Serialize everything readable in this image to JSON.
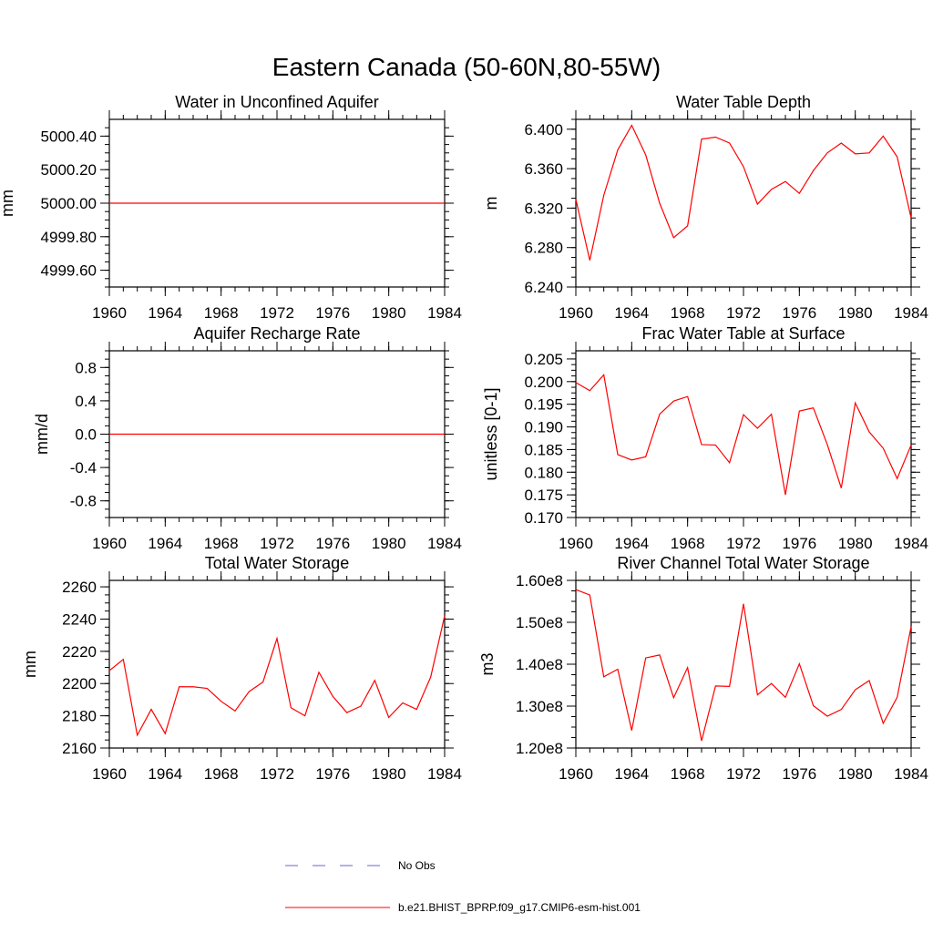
{
  "figure": {
    "title": "Eastern Canada (50-60N,80-55W)"
  },
  "legend": {
    "entries": [
      {
        "label": "No Obs",
        "style": "dashed",
        "color": "#6666cc"
      },
      {
        "label": "b.e21.BHIST_BPRP.f09_g17.CMIP6-esm-hist.001",
        "style": "solid",
        "color": "#ff0000"
      }
    ]
  },
  "colors": {
    "series": "#ff0000",
    "axis": "#000000"
  },
  "chart_data": [
    {
      "type": "line",
      "title": "Water in Unconfined Aquifer",
      "xlabel": "",
      "ylabel": "mm",
      "xlim": [
        1960,
        1984
      ],
      "ylim": [
        4999.5,
        5000.5
      ],
      "xticks": [
        1960,
        1964,
        1968,
        1972,
        1976,
        1980,
        1984
      ],
      "xtick_labels": [
        "1960",
        "1964",
        "1968",
        "1972",
        "1976",
        "1980",
        "1984"
      ],
      "yticks": [
        4999.6,
        4999.8,
        5000.0,
        5000.2,
        5000.4
      ],
      "ytick_labels": [
        "4999.60",
        "4999.80",
        "5000.00",
        "5000.20",
        "5000.40"
      ],
      "x": [
        1960,
        1961,
        1962,
        1963,
        1964,
        1965,
        1966,
        1967,
        1968,
        1969,
        1970,
        1971,
        1972,
        1973,
        1974,
        1975,
        1976,
        1977,
        1978,
        1979,
        1980,
        1981,
        1982,
        1983,
        1984
      ],
      "series": [
        {
          "color": "#ff0000",
          "values": [
            5000,
            5000,
            5000,
            5000,
            5000,
            5000,
            5000,
            5000,
            5000,
            5000,
            5000,
            5000,
            5000,
            5000,
            5000,
            5000,
            5000,
            5000,
            5000,
            5000,
            5000,
            5000,
            5000,
            5000,
            5000
          ]
        }
      ]
    },
    {
      "type": "line",
      "title": "Water Table Depth",
      "xlabel": "",
      "ylabel": "m",
      "xlim": [
        1960,
        1984
      ],
      "ylim": [
        6.24,
        6.41
      ],
      "xticks": [
        1960,
        1964,
        1968,
        1972,
        1976,
        1980,
        1984
      ],
      "xtick_labels": [
        "1960",
        "1964",
        "1968",
        "1972",
        "1976",
        "1980",
        "1984"
      ],
      "yticks": [
        6.24,
        6.28,
        6.32,
        6.36,
        6.4
      ],
      "ytick_labels": [
        "6.240",
        "6.280",
        "6.320",
        "6.360",
        "6.400"
      ],
      "x": [
        1960,
        1961,
        1962,
        1963,
        1964,
        1965,
        1966,
        1967,
        1968,
        1969,
        1970,
        1971,
        1972,
        1973,
        1974,
        1975,
        1976,
        1977,
        1978,
        1979,
        1980,
        1981,
        1982,
        1983,
        1984
      ],
      "series": [
        {
          "color": "#ff0000",
          "values": [
            6.329,
            6.267,
            6.333,
            6.379,
            6.404,
            6.374,
            6.325,
            6.29,
            6.302,
            6.39,
            6.392,
            6.386,
            6.362,
            6.324,
            6.339,
            6.347,
            6.335,
            6.358,
            6.376,
            6.386,
            6.375,
            6.376,
            6.393,
            6.372,
            6.31
          ]
        }
      ]
    },
    {
      "type": "line",
      "title": "Aquifer Recharge Rate",
      "xlabel": "",
      "ylabel": "mm/d",
      "xlim": [
        1960,
        1984
      ],
      "ylim": [
        -1.0,
        1.0
      ],
      "xticks": [
        1960,
        1964,
        1968,
        1972,
        1976,
        1980,
        1984
      ],
      "xtick_labels": [
        "1960",
        "1964",
        "1968",
        "1972",
        "1976",
        "1980",
        "1984"
      ],
      "yticks": [
        -0.8,
        -0.4,
        0.0,
        0.4,
        0.8
      ],
      "ytick_labels": [
        "-0.8",
        "-0.4",
        "0.0",
        "0.4",
        "0.8"
      ],
      "x": [
        1960,
        1961,
        1962,
        1963,
        1964,
        1965,
        1966,
        1967,
        1968,
        1969,
        1970,
        1971,
        1972,
        1973,
        1974,
        1975,
        1976,
        1977,
        1978,
        1979,
        1980,
        1981,
        1982,
        1983,
        1984
      ],
      "series": [
        {
          "color": "#ff0000",
          "values": [
            0,
            0,
            0,
            0,
            0,
            0,
            0,
            0,
            0,
            0,
            0,
            0,
            0,
            0,
            0,
            0,
            0,
            0,
            0,
            0,
            0,
            0,
            0,
            0,
            0
          ]
        }
      ]
    },
    {
      "type": "line",
      "title": "Frac Water Table at Surface",
      "xlabel": "",
      "ylabel": "unitless [0-1]",
      "xlim": [
        1960,
        1984
      ],
      "ylim": [
        0.17,
        0.2068
      ],
      "xticks": [
        1960,
        1964,
        1968,
        1972,
        1976,
        1980,
        1984
      ],
      "xtick_labels": [
        "1960",
        "1964",
        "1968",
        "1972",
        "1976",
        "1980",
        "1984"
      ],
      "yticks": [
        0.17,
        0.175,
        0.18,
        0.185,
        0.19,
        0.195,
        0.2,
        0.205
      ],
      "ytick_labels": [
        "0.170",
        "0.175",
        "0.180",
        "0.185",
        "0.190",
        "0.195",
        "0.200",
        "0.205"
      ],
      "x": [
        1960,
        1961,
        1962,
        1963,
        1964,
        1965,
        1966,
        1967,
        1968,
        1969,
        1970,
        1971,
        1972,
        1973,
        1974,
        1975,
        1976,
        1977,
        1978,
        1979,
        1980,
        1981,
        1982,
        1983,
        1984
      ],
      "series": [
        {
          "color": "#ff0000",
          "values": [
            0.1998,
            0.198,
            0.2015,
            0.1839,
            0.1827,
            0.1834,
            0.1928,
            0.1957,
            0.1967,
            0.1861,
            0.186,
            0.1821,
            0.1927,
            0.1897,
            0.1928,
            0.175,
            0.1935,
            0.1942,
            0.1861,
            0.1765,
            0.1953,
            0.1889,
            0.1853,
            0.1786,
            0.186
          ]
        }
      ]
    },
    {
      "type": "line",
      "title": "Total Water Storage",
      "xlabel": "",
      "ylabel": "mm",
      "xlim": [
        1960,
        1984
      ],
      "ylim": [
        2160,
        2264
      ],
      "xticks": [
        1960,
        1964,
        1968,
        1972,
        1976,
        1980,
        1984
      ],
      "xtick_labels": [
        "1960",
        "1964",
        "1968",
        "1972",
        "1976",
        "1980",
        "1984"
      ],
      "yticks": [
        2160,
        2180,
        2200,
        2220,
        2240,
        2260
      ],
      "ytick_labels": [
        "2160",
        "2180",
        "2200",
        "2220",
        "2240",
        "2260"
      ],
      "x": [
        1960,
        1961,
        1962,
        1963,
        1964,
        1965,
        1966,
        1967,
        1968,
        1969,
        1970,
        1971,
        1972,
        1973,
        1974,
        1975,
        1976,
        1977,
        1978,
        1979,
        1980,
        1981,
        1982,
        1983,
        1984
      ],
      "series": [
        {
          "color": "#ff0000",
          "values": [
            2208,
            2215,
            2168,
            2184,
            2169,
            2198,
            2198,
            2197,
            2189,
            2183,
            2195,
            2201,
            2228,
            2185,
            2180,
            2207,
            2192,
            2182,
            2186,
            2202,
            2179,
            2188,
            2184,
            2204,
            2242
          ]
        }
      ]
    },
    {
      "type": "line",
      "title": "River Channel Total Water Storage",
      "xlabel": "",
      "ylabel": "m3",
      "xlim": [
        1960,
        1984
      ],
      "ylim": [
        120000000,
        160000000
      ],
      "xticks": [
        1960,
        1964,
        1968,
        1972,
        1976,
        1980,
        1984
      ],
      "xtick_labels": [
        "1960",
        "1964",
        "1968",
        "1972",
        "1976",
        "1980",
        "1984"
      ],
      "yticks": [
        120000000,
        130000000,
        140000000,
        150000000,
        160000000
      ],
      "ytick_labels": [
        "1.20e8",
        "1.30e8",
        "1.40e8",
        "1.50e8",
        "1.60e8"
      ],
      "x": [
        1960,
        1961,
        1962,
        1963,
        1964,
        1965,
        1966,
        1967,
        1968,
        1969,
        1970,
        1971,
        1972,
        1973,
        1974,
        1975,
        1976,
        1977,
        1978,
        1979,
        1980,
        1981,
        1982,
        1983,
        1984
      ],
      "series": [
        {
          "color": "#ff0000",
          "values": [
            157800000,
            156500000,
            137000000,
            138800000,
            124200000,
            141500000,
            142200000,
            132000000,
            139200000,
            121700000,
            134800000,
            134700000,
            154400000,
            132700000,
            135400000,
            132100000,
            140100000,
            130100000,
            127600000,
            129200000,
            133900000,
            136100000,
            125900000,
            132100000,
            149000000
          ]
        }
      ]
    }
  ]
}
